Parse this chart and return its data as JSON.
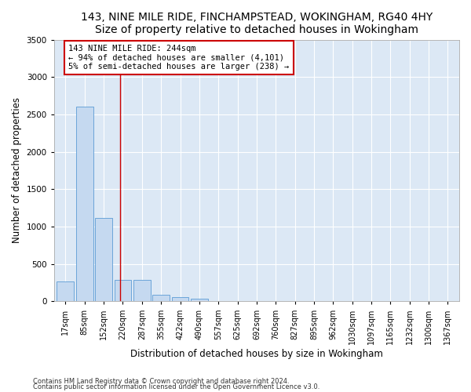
{
  "title": "143, NINE MILE RIDE, FINCHAMPSTEAD, WOKINGHAM, RG40 4HY",
  "subtitle": "Size of property relative to detached houses in Wokingham",
  "xlabel": "Distribution of detached houses by size in Wokingham",
  "ylabel": "Number of detached properties",
  "bar_labels": [
    "17sqm",
    "85sqm",
    "152sqm",
    "220sqm",
    "287sqm",
    "355sqm",
    "422sqm",
    "490sqm",
    "557sqm",
    "625sqm",
    "692sqm",
    "760sqm",
    "827sqm",
    "895sqm",
    "962sqm",
    "1030sqm",
    "1097sqm",
    "1165sqm",
    "1232sqm",
    "1300sqm",
    "1367sqm"
  ],
  "bar_values": [
    270,
    2600,
    1120,
    290,
    285,
    90,
    60,
    40,
    0,
    0,
    0,
    0,
    0,
    0,
    0,
    0,
    0,
    0,
    0,
    0,
    0
  ],
  "bar_color": "#c5d9f0",
  "bar_edge_color": "#5b9bd5",
  "ylim": [
    0,
    3500
  ],
  "yticks": [
    0,
    500,
    1000,
    1500,
    2000,
    2500,
    3000,
    3500
  ],
  "annotation_box_text": "143 NINE MILE RIDE: 244sqm\n← 94% of detached houses are smaller (4,101)\n5% of semi-detached houses are larger (238) →",
  "vline_x": 2.85,
  "vline_color": "#cc0000",
  "annotation_border_color": "#cc0000",
  "footer_line1": "Contains HM Land Registry data © Crown copyright and database right 2024.",
  "footer_line2": "Contains public sector information licensed under the Open Government Licence v3.0.",
  "background_color": "#dce8f5",
  "grid_color": "#ffffff",
  "fig_background": "#ffffff",
  "title_fontsize": 10,
  "tick_fontsize": 7
}
